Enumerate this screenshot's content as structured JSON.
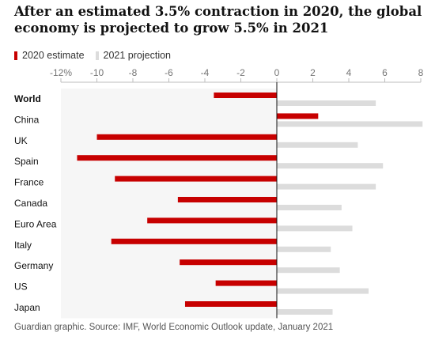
{
  "title": "After an estimated 3.5% contraction in 2020, the global economy is projected to grow 5.5% in 2021",
  "source": "Guardian graphic. Source: IMF, World Economic Outlook update, January 2021",
  "chart_data": {
    "type": "bar",
    "orientation": "horizontal",
    "title": "After an estimated 3.5% contraction in 2020, the global economy is projected to grow 5.5% in 2021",
    "categories": [
      "World",
      "China",
      "UK",
      "Spain",
      "France",
      "Canada",
      "Euro Area",
      "Italy",
      "Germany",
      "US",
      "Japan"
    ],
    "series": [
      {
        "name": "2020 estimate",
        "color": "#c70000",
        "values": [
          -3.5,
          2.3,
          -10.0,
          -11.1,
          -9.0,
          -5.5,
          -7.2,
          -9.2,
          -5.4,
          -3.4,
          -5.1
        ]
      },
      {
        "name": "2021 projection",
        "color": "#dcdcdc",
        "values": [
          5.5,
          8.1,
          4.5,
          5.9,
          5.5,
          3.6,
          4.2,
          3.0,
          3.5,
          5.1,
          3.1
        ]
      }
    ],
    "xlim": [
      -12,
      8
    ],
    "xticks": [
      -12,
      -10,
      -8,
      -6,
      -4,
      -2,
      0,
      2,
      4,
      6,
      8
    ],
    "xtick_labels": [
      "-12%",
      "-10",
      "-8",
      "-6",
      "-4",
      "-2",
      "0",
      "2",
      "4",
      "6",
      "8"
    ],
    "negative_region_shaded": true,
    "shade_color": "#f6f6f6",
    "legend": "top-left"
  }
}
